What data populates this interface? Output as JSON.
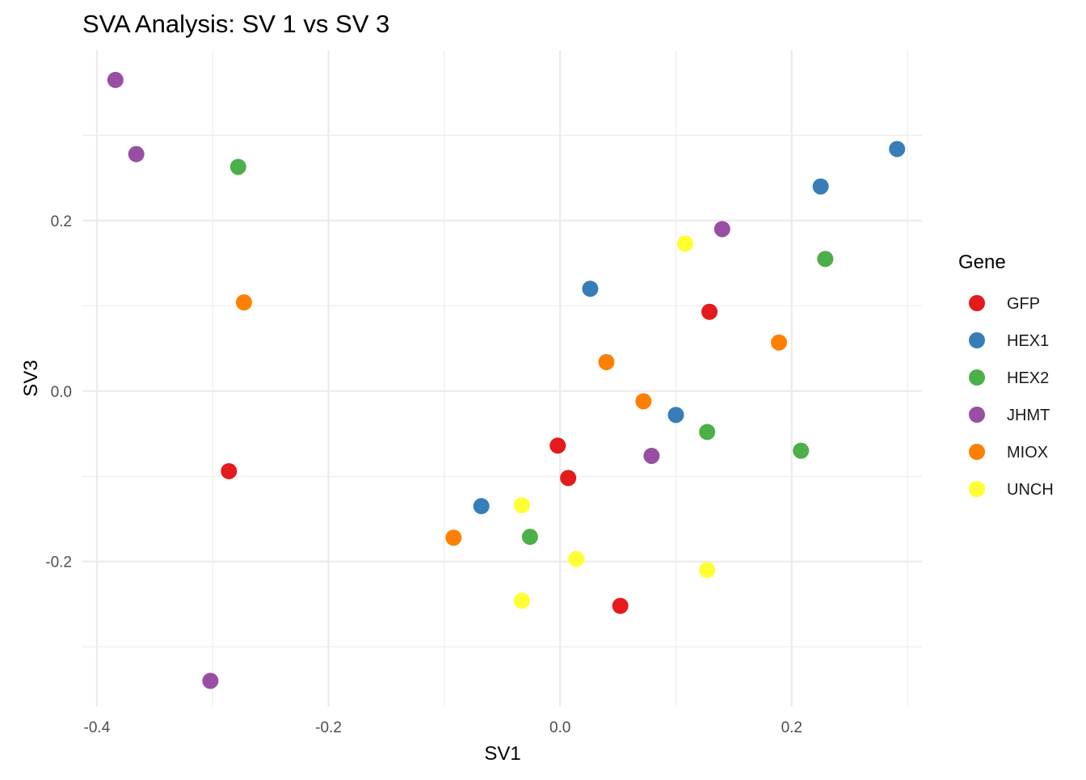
{
  "chart_data": {
    "type": "scatter",
    "title": "SVA Analysis: SV 1  vs SV 3",
    "xlabel": "SV1",
    "ylabel": "SV3",
    "xlim": [
      -0.4125,
      0.3125
    ],
    "ylim": [
      -0.37,
      0.4
    ],
    "x_ticks": [
      {
        "value": -0.4,
        "label": "-0.4"
      },
      {
        "value": -0.2,
        "label": "-0.2"
      },
      {
        "value": 0.0,
        "label": "0.0"
      },
      {
        "value": 0.2,
        "label": "0.2"
      }
    ],
    "y_ticks": [
      {
        "value": -0.2,
        "label": "-0.2"
      },
      {
        "value": 0.0,
        "label": "0.0"
      },
      {
        "value": 0.2,
        "label": "0.2"
      }
    ],
    "x_minor": [
      -0.3,
      -0.1,
      0.1,
      0.3
    ],
    "y_minor": [
      -0.3,
      -0.1,
      0.1,
      0.3
    ],
    "grid": true,
    "legend_title": "Gene",
    "legend_position": "right",
    "series": [
      {
        "name": "GFP",
        "color": "#e41a1c",
        "points": [
          [
            0.129,
            0.093
          ],
          [
            -0.002,
            -0.064
          ],
          [
            0.007,
            -0.102
          ],
          [
            -0.286,
            -0.094
          ],
          [
            0.052,
            -0.252
          ]
        ]
      },
      {
        "name": "HEX1",
        "color": "#377eb8",
        "points": [
          [
            0.291,
            0.284
          ],
          [
            0.225,
            0.24
          ],
          [
            0.026,
            0.12
          ],
          [
            0.1,
            -0.028
          ],
          [
            -0.068,
            -0.135
          ]
        ]
      },
      {
        "name": "HEX2",
        "color": "#4daf4a",
        "points": [
          [
            -0.278,
            0.263
          ],
          [
            0.229,
            0.155
          ],
          [
            0.127,
            -0.048
          ],
          [
            0.208,
            -0.07
          ],
          [
            -0.026,
            -0.171
          ]
        ]
      },
      {
        "name": "JHMT",
        "color": "#984ea3",
        "points": [
          [
            -0.384,
            0.365
          ],
          [
            -0.366,
            0.278
          ],
          [
            0.14,
            0.19
          ],
          [
            0.079,
            -0.076
          ],
          [
            -0.302,
            -0.34
          ]
        ]
      },
      {
        "name": "MIOX",
        "color": "#ff7f00",
        "points": [
          [
            -0.273,
            0.104
          ],
          [
            0.189,
            0.057
          ],
          [
            0.04,
            0.034
          ],
          [
            0.072,
            -0.012
          ],
          [
            -0.092,
            -0.172
          ]
        ]
      },
      {
        "name": "UNCH",
        "color": "#ffff33",
        "points": [
          [
            0.108,
            0.173
          ],
          [
            -0.033,
            -0.134
          ],
          [
            0.014,
            -0.197
          ],
          [
            0.127,
            -0.21
          ],
          [
            -0.033,
            -0.246
          ]
        ]
      }
    ]
  }
}
